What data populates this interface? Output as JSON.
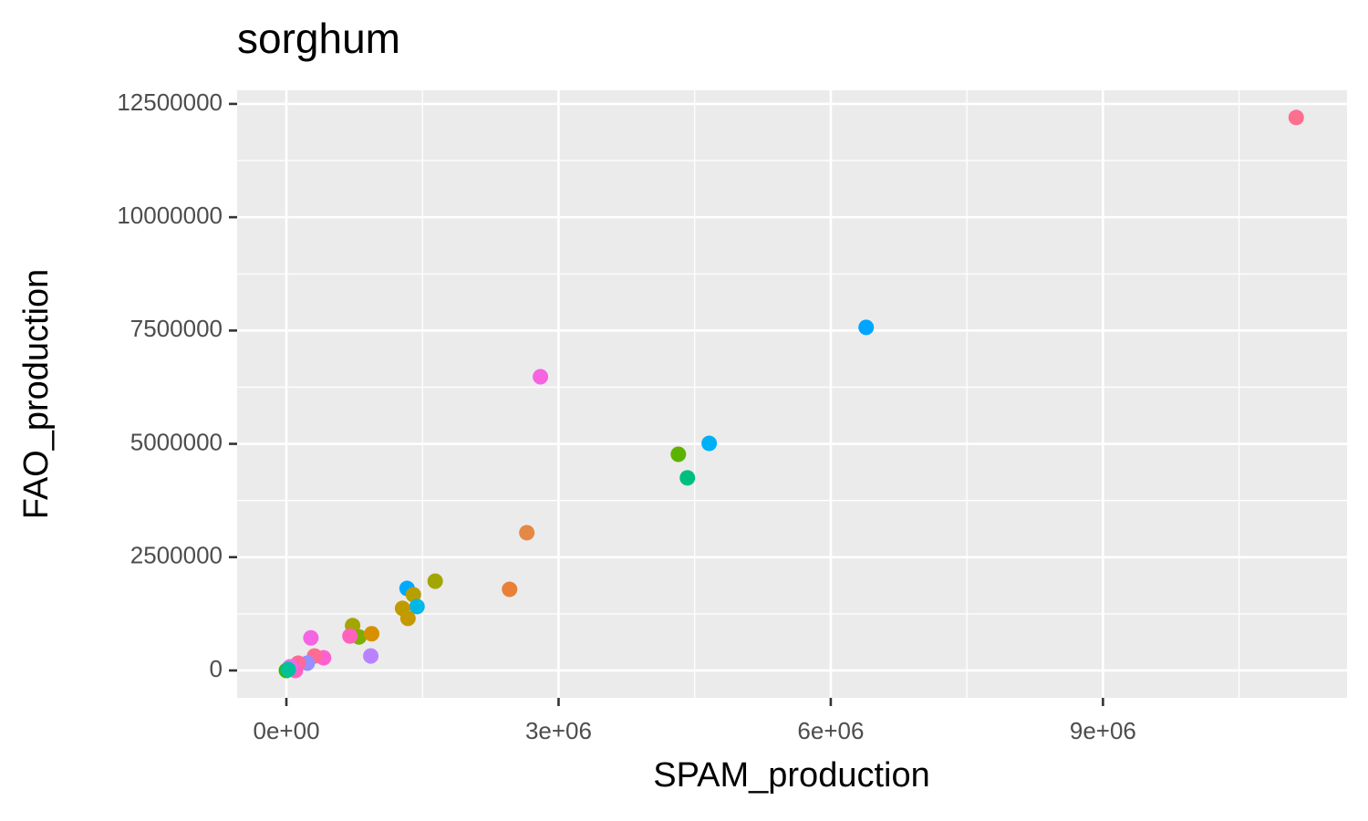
{
  "chart_data": {
    "type": "scatter",
    "title": "sorghum",
    "x_label": "SPAM_production",
    "y_label": "FAO_production",
    "xlim": [
      -543000,
      11690000
    ],
    "ylim": [
      -604000,
      12800000
    ],
    "xticks": [
      {
        "value": 0,
        "label": "0e+00"
      },
      {
        "value": 3000000,
        "label": "3e+06"
      },
      {
        "value": 6000000,
        "label": "6e+06"
      },
      {
        "value": 9000000,
        "label": "9e+06"
      }
    ],
    "yticks": [
      0,
      2500000,
      5000000,
      7500000,
      10000000,
      12500000
    ],
    "grid": true,
    "x": [
      11130000,
      6390000,
      2800000,
      4660000,
      4320000,
      4420000,
      2650000,
      2460000,
      1640000,
      1330000,
      1400000,
      1440000,
      1280000,
      1340000,
      730000,
      800000,
      940000,
      700000,
      270000,
      930000,
      410000,
      310000,
      230000,
      130000,
      100000,
      40000,
      0,
      20000
    ],
    "values": [
      12200000,
      7570000,
      6480000,
      5010000,
      4770000,
      4250000,
      3040000,
      1790000,
      1970000,
      1810000,
      1670000,
      1410000,
      1370000,
      1150000,
      990000,
      740000,
      810000,
      760000,
      720000,
      320000,
      280000,
      320000,
      160000,
      160000,
      0,
      80000,
      0,
      20000
    ],
    "colors": [
      "#fd6f8f",
      "#00a5ff",
      "#f763e0",
      "#00b0f6",
      "#5bb300",
      "#00bf7d",
      "#e58745",
      "#e8803a",
      "#a3a500",
      "#00a9ff",
      "#b79f00",
      "#00b8e7",
      "#c09b00",
      "#c49a00",
      "#a3a500",
      "#7cae00",
      "#d89000",
      "#ff62bc",
      "#f564e3",
      "#b983ff",
      "#fd61d1",
      "#ff6c91",
      "#9590ff",
      "#ff6a98",
      "#ff61c3",
      "#e76bf3",
      "#39b600",
      "#00c19a"
    ]
  }
}
